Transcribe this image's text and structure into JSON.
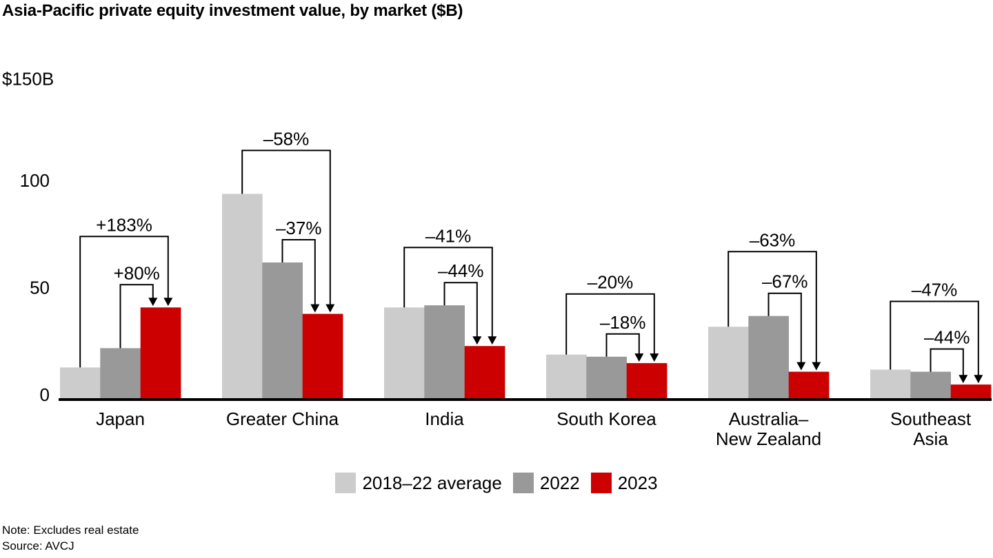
{
  "title": "Asia-Pacific private equity investment value, by market ($B)",
  "chart_data": {
    "type": "bar",
    "title": "Asia-Pacific private equity investment value, by market ($B)",
    "unit_top_label": "$150B",
    "ylim": [
      0,
      150
    ],
    "y_ticks": [
      0,
      50,
      100
    ],
    "grid": false,
    "legend_position": "bottom-center",
    "categories": [
      "Japan",
      "Greater China",
      "India",
      "South Korea",
      "Australia–New Zealand",
      "Southeast Asia"
    ],
    "category_label_lines": [
      [
        "Japan"
      ],
      [
        "Greater China"
      ],
      [
        "India"
      ],
      [
        "South Korea"
      ],
      [
        "Australia–",
        "New Zealand"
      ],
      [
        "Southeast",
        "Asia"
      ]
    ],
    "series": [
      {
        "name": "2018–22 average",
        "color": "#cccccc",
        "values": [
          15,
          96,
          43,
          21,
          34,
          14
        ]
      },
      {
        "name": "2022",
        "color": "#999999",
        "values": [
          24,
          64,
          44,
          20,
          39,
          13
        ]
      },
      {
        "name": "2023",
        "color": "#cc0000",
        "values": [
          43,
          40,
          25,
          17,
          13,
          7
        ]
      }
    ],
    "annotations": [
      {
        "category": "Japan",
        "avg_vs_2023": "+183%",
        "y2022_vs_2023": "+80%"
      },
      {
        "category": "Greater China",
        "avg_vs_2023": "–58%",
        "y2022_vs_2023": "–37%"
      },
      {
        "category": "India",
        "avg_vs_2023": "–41%",
        "y2022_vs_2023": "–44%"
      },
      {
        "category": "South Korea",
        "avg_vs_2023": "–20%",
        "y2022_vs_2023": "–18%"
      },
      {
        "category": "Australia–New Zealand",
        "avg_vs_2023": "–63%",
        "y2022_vs_2023": "–67%"
      },
      {
        "category": "Southeast Asia",
        "avg_vs_2023": "–47%",
        "y2022_vs_2023": "–44%"
      }
    ]
  },
  "footer": {
    "note": "Note: Excludes real estate",
    "source": "Source: AVCJ"
  }
}
